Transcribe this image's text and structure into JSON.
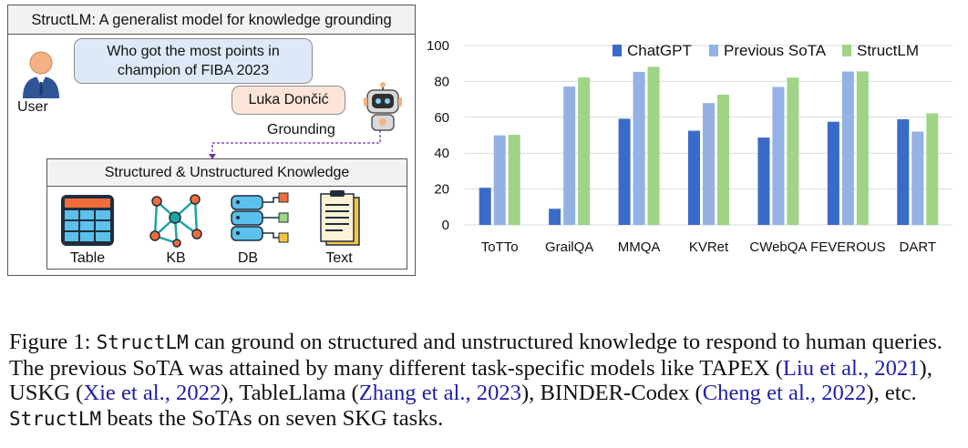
{
  "figure": {
    "panel_title": "StructLM: A generalist model for knowledge grounding",
    "user_question_line1": "Who got the most points in",
    "user_question_line2": "champion of FIBA 2023",
    "user_label": "User",
    "answer": "Luka Dončić",
    "grounding_label": "Grounding",
    "knowledge_title": "Structured & Unstructured Knowledge",
    "knowledge_items": [
      {
        "label": "Table",
        "icon": "table-icon"
      },
      {
        "label": "KB",
        "icon": "knowledge-graph-icon"
      },
      {
        "label": "DB",
        "icon": "database-icon"
      },
      {
        "label": "Text",
        "icon": "document-icon"
      }
    ]
  },
  "chart_data": {
    "type": "bar",
    "categories": [
      "ToTTo",
      "GrailQA",
      "MMQA",
      "KVRet",
      "CWebQA",
      "FEVEROUS",
      "DART"
    ],
    "series": [
      {
        "name": "ChatGPT",
        "color": "#3a6bc9",
        "values": [
          20.7,
          9.0,
          59.2,
          52.5,
          48.7,
          57.5,
          58.9
        ]
      },
      {
        "name": "Previous SoTA",
        "color": "#93b1e4",
        "values": [
          49.9,
          77.1,
          85.3,
          67.9,
          76.9,
          85.5,
          52.0
        ]
      },
      {
        "name": "StructLM",
        "color": "#9fd487",
        "values": [
          50.2,
          82.2,
          88.1,
          72.6,
          82.1,
          85.6,
          62.2
        ]
      }
    ],
    "ylim": [
      0,
      100
    ],
    "yticks": [
      0,
      20,
      40,
      60,
      80,
      100
    ],
    "grid": true,
    "legend": "top"
  },
  "caption": {
    "fig_label": "Figure 1:",
    "model_name": "StructLM",
    "text1": "can ground on structured and unstructured knowledge to respond to human queries. The previous SoTA was attained by many different task-specific models like TAPEX (",
    "cite1": "Liu et al., 2021",
    "text2": "), USKG (",
    "cite2": "Xie et al., 2022",
    "text3": "), TableLlama (",
    "cite3": "Zhang et al., 2023",
    "text4": "), BINDER-Codex (",
    "cite4": "Cheng et al., 2022",
    "text5": "), etc.",
    "text6": "beats the SoTAs on seven SKG tasks."
  }
}
